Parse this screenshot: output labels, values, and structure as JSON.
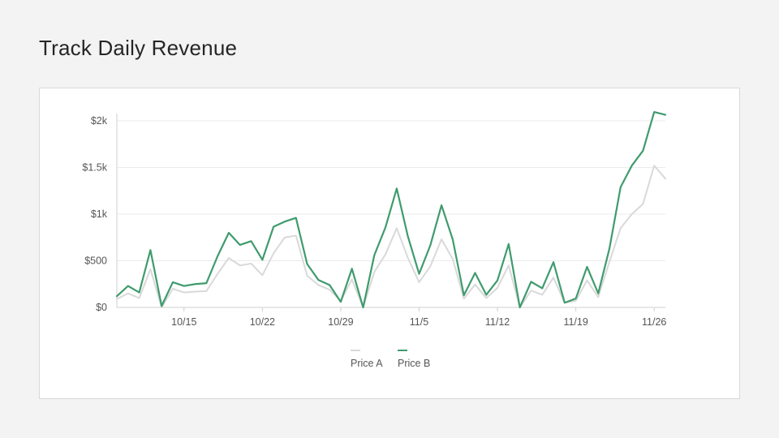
{
  "page": {
    "title": "Track Daily Revenue"
  },
  "colors": {
    "price_a": "#d9d9d9",
    "price_b": "#3f9b6d",
    "grid": "#ebebeb",
    "axis": "#cfcfcf"
  },
  "chart_data": {
    "type": "line",
    "title": "Track Daily Revenue",
    "xlabel": "",
    "ylabel": "",
    "x": [
      "10/9",
      "10/10",
      "10/11",
      "10/12",
      "10/13",
      "10/14",
      "10/15",
      "10/16",
      "10/17",
      "10/18",
      "10/19",
      "10/20",
      "10/21",
      "10/22",
      "10/23",
      "10/24",
      "10/25",
      "10/26",
      "10/27",
      "10/28",
      "10/29",
      "10/30",
      "10/31",
      "11/1",
      "11/2",
      "11/3",
      "11/4",
      "11/5",
      "11/6",
      "11/7",
      "11/8",
      "11/9",
      "11/10",
      "11/11",
      "11/12",
      "11/13",
      "11/14",
      "11/15",
      "11/16",
      "11/17",
      "11/18",
      "11/19",
      "11/20",
      "11/21",
      "11/22",
      "11/23",
      "11/24",
      "11/25",
      "11/26",
      "11/27"
    ],
    "x_ticks": [
      "10/15",
      "10/22",
      "10/29",
      "11/5",
      "11/12",
      "11/19",
      "11/26"
    ],
    "y_ticks": [
      0,
      500,
      1000,
      1500,
      2000
    ],
    "y_tick_labels": [
      "$0",
      "$500",
      "$1k",
      "$1.5k",
      "$2k"
    ],
    "ylim": [
      0,
      2000
    ],
    "grid": true,
    "legend_position": "bottom-center",
    "series": [
      {
        "name": "Price A",
        "values": [
          90,
          150,
          100,
          410,
          0,
          200,
          160,
          170,
          175,
          360,
          530,
          450,
          470,
          345,
          580,
          750,
          770,
          340,
          240,
          190,
          70,
          300,
          0,
          380,
          570,
          850,
          530,
          270,
          440,
          730,
          520,
          95,
          245,
          100,
          210,
          450,
          0,
          180,
          135,
          320,
          50,
          70,
          290,
          110,
          490,
          850,
          1000,
          1110,
          1520,
          1380
        ]
      },
      {
        "name": "Price B",
        "values": [
          120,
          230,
          160,
          615,
          15,
          270,
          230,
          250,
          260,
          550,
          800,
          670,
          710,
          510,
          865,
          920,
          960,
          465,
          295,
          240,
          60,
          415,
          0,
          560,
          860,
          1275,
          760,
          360,
          665,
          1095,
          730,
          130,
          370,
          135,
          290,
          680,
          0,
          275,
          205,
          485,
          50,
          95,
          435,
          150,
          630,
          1290,
          1520,
          1680,
          2095,
          2065
        ]
      }
    ]
  }
}
